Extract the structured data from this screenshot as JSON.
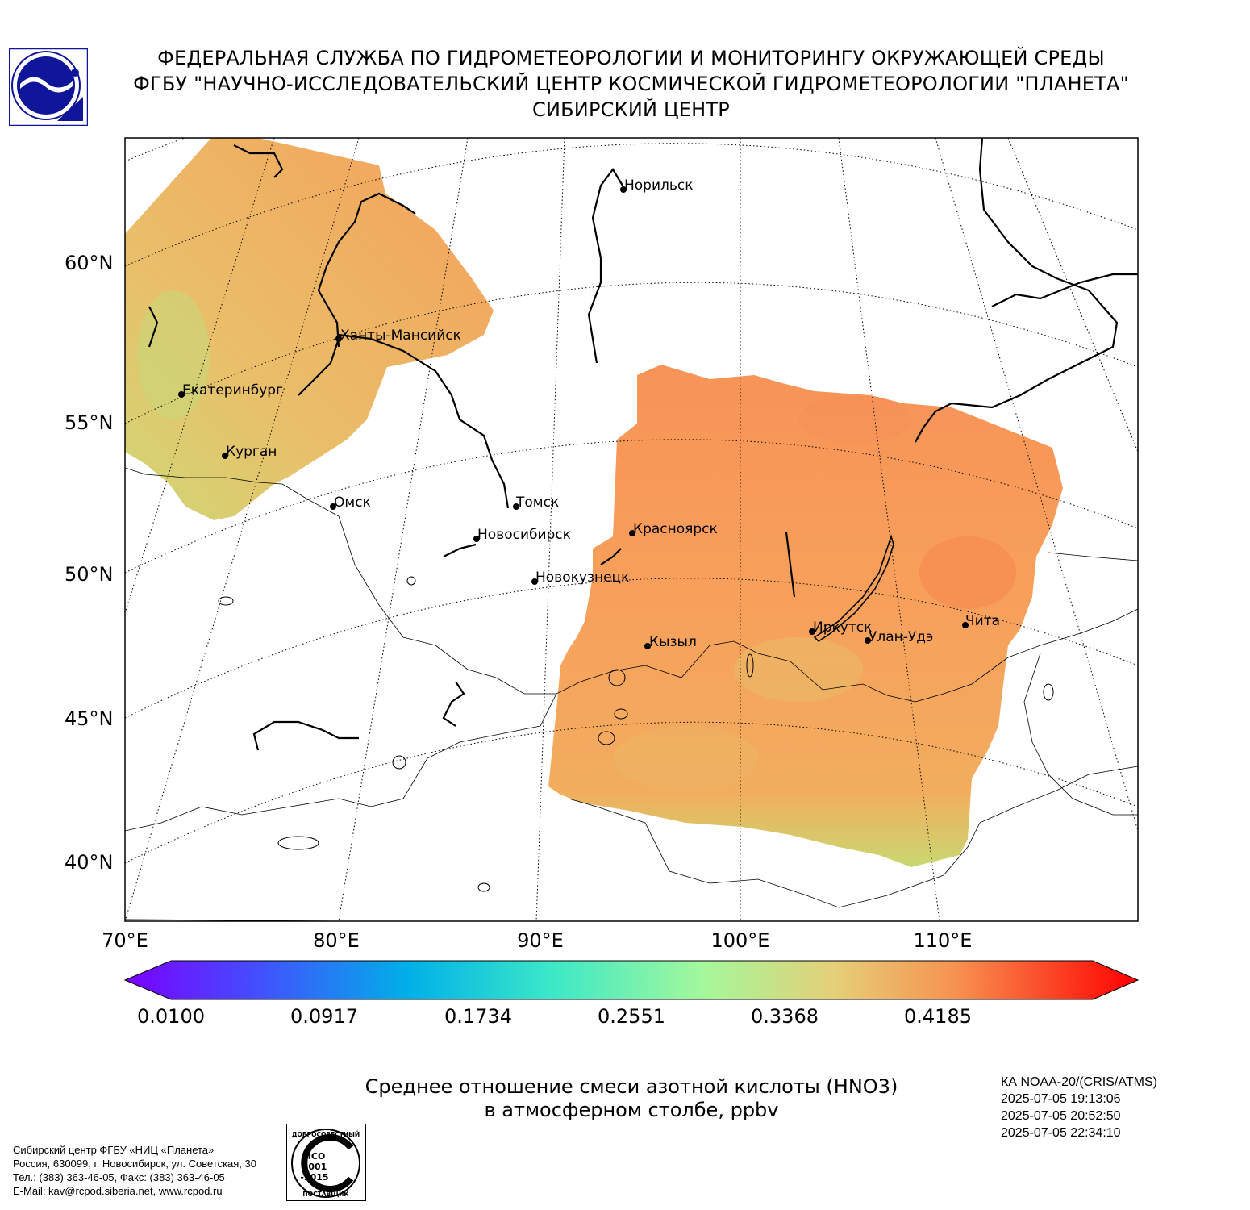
{
  "header": {
    "line1": "ФЕДЕРАЛЬНАЯ СЛУЖБА ПО ГИДРОМЕТЕОРОЛОГИИ И МОНИТОРИНГУ ОКРУЖАЮЩЕЙ СРЕДЫ",
    "line2": "ФГБУ \"НАУЧНО-ИССЛЕДОВАТЕЛЬСКИЙ ЦЕНТР КОСМИЧЕСКОЙ ГИДРОМЕТЕОРОЛОГИИ \"ПЛАНЕТА\"",
    "line3": "СИБИРСКИЙ ЦЕНТР"
  },
  "colors": {
    "logo_blue": "#10169a",
    "ocean_free": "#ffffff",
    "field_orange": "#f5a259"
  },
  "map": {
    "lat_labels": [
      "60°N",
      "55°N",
      "50°N",
      "45°N",
      "40°N"
    ],
    "lon_labels": [
      "70°E",
      "80°E",
      "90°E",
      "100°E",
      "110°E"
    ],
    "cities": [
      {
        "name": "Норильск"
      },
      {
        "name": "Ханты-Мансийск"
      },
      {
        "name": "Екатеринбург"
      },
      {
        "name": "Курган"
      },
      {
        "name": "Омск"
      },
      {
        "name": "Томск"
      },
      {
        "name": "Новосибирск"
      },
      {
        "name": "Красноярск"
      },
      {
        "name": "Новокузнецк"
      },
      {
        "name": "Кызыл"
      },
      {
        "name": "Иркутск"
      },
      {
        "name": "Улан-Удэ"
      },
      {
        "name": "Чита"
      }
    ]
  },
  "colorbar": {
    "ticks": [
      "0.0100",
      "0.0917",
      "0.1734",
      "0.2551",
      "0.3368",
      "0.4185"
    ]
  },
  "title": {
    "line1": "Среднее отношение смеси азотной кислоты (HNO3)",
    "line2": "в атмосферном столбе, ppbv"
  },
  "satellite": {
    "name": "КА NOAA-20/(CRIS/ATMS)",
    "times": [
      "2025-07-05 19:13:06",
      "2025-07-05 20:52:50",
      "2025-07-05 22:34:10"
    ]
  },
  "footer": {
    "address": [
      "Сибирский центр ФГБУ «НИЦ «Планета»",
      "Россия, 630099, г. Новосибирск, ул. Советская, 30",
      "Тел.: (383) 363-46-05, Факс: (383) 363-46-05",
      "E-Mail: kav@rcpod.siberia.net, www.rcpod.ru"
    ],
    "iso": {
      "top": "ДОБРОСОВЕСТНЫЙ",
      "a": "ИСО",
      "b": "9001",
      "c": "-2015",
      "bottom": "ПОСТАВЩИК"
    }
  }
}
